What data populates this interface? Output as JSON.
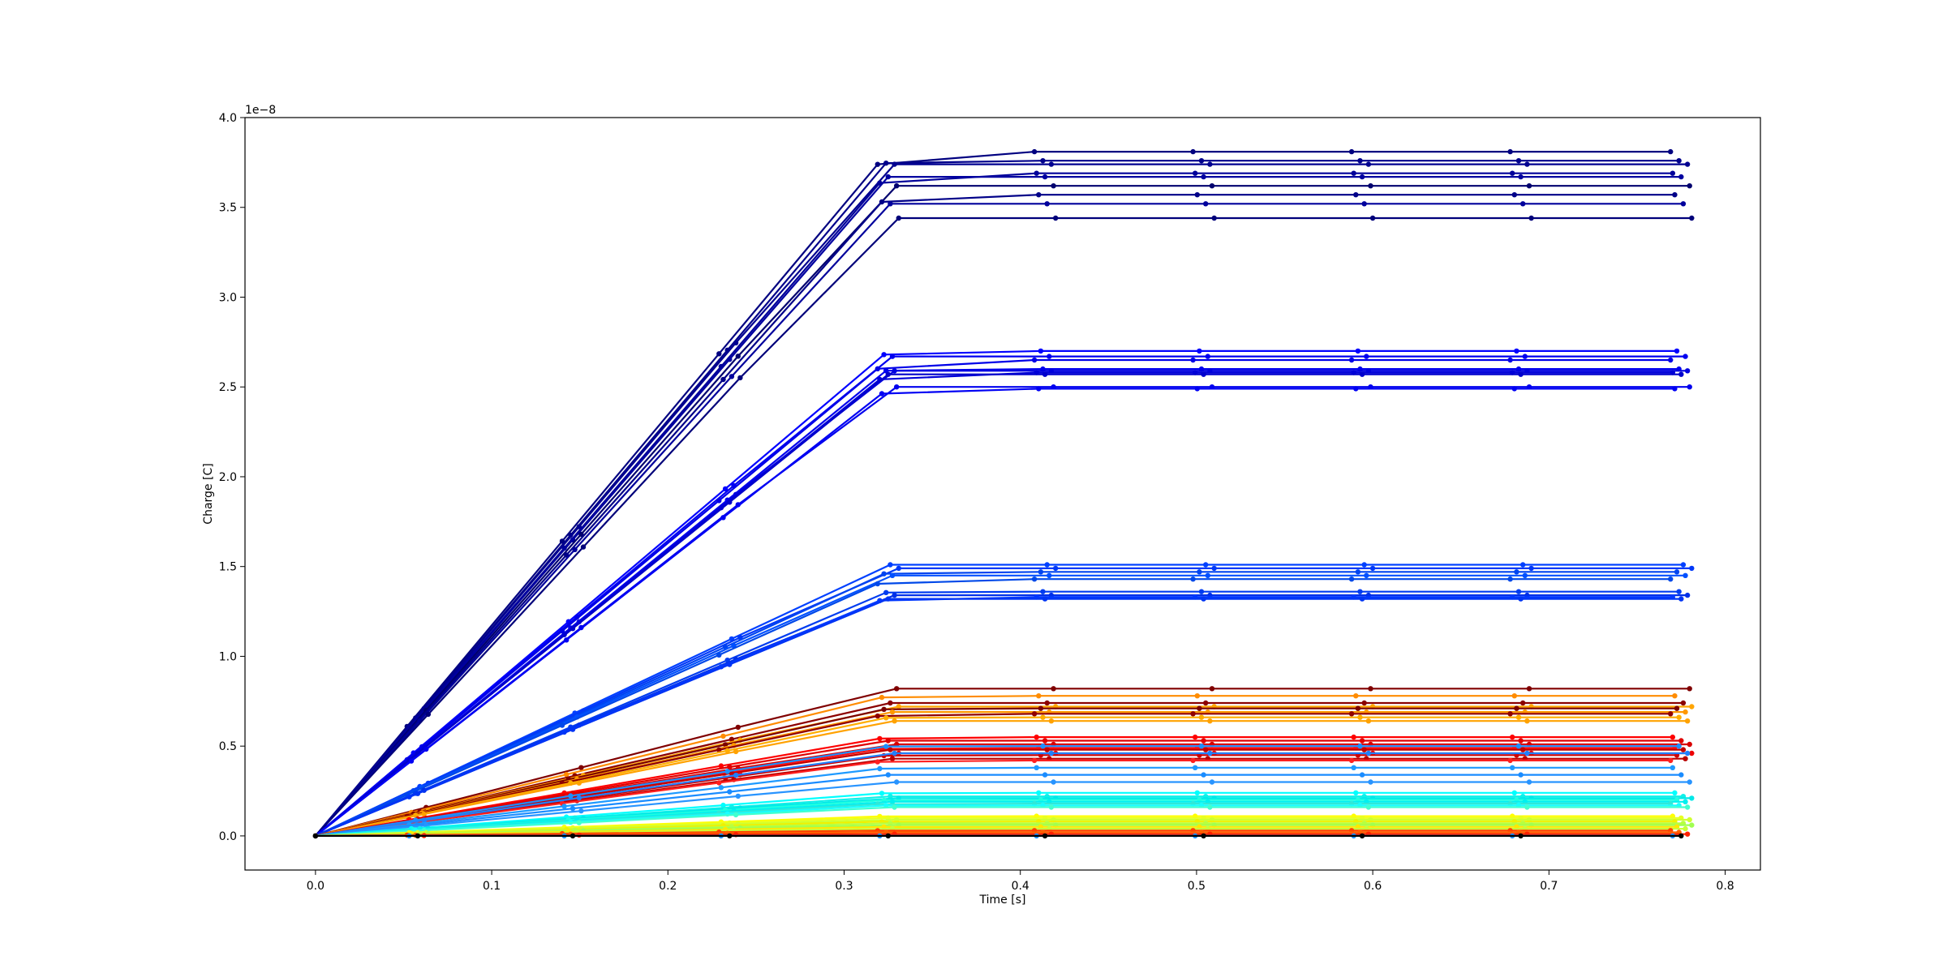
{
  "chart_data": {
    "type": "line",
    "title": "",
    "xlabel": "Time [s]",
    "ylabel": "Charge [C]",
    "y_offset_text": "1e−8",
    "xlim": [
      -0.04,
      0.82
    ],
    "ylim": [
      -0.19,
      4.0
    ],
    "xticks": [
      "0.0",
      "0.1",
      "0.2",
      "0.3",
      "0.4",
      "0.5",
      "0.6",
      "0.7",
      "0.8"
    ],
    "yticks": [
      "0.0",
      "0.5",
      "1.0",
      "1.5",
      "2.0",
      "2.5",
      "3.0",
      "3.5",
      "4.0"
    ],
    "grid": false,
    "legend": "none",
    "x_sample_times": [
      0.0,
      0.058,
      0.146,
      0.235,
      0.325,
      0.414,
      0.504,
      0.594,
      0.684,
      0.775
    ],
    "plateau_values": [
      3.81,
      3.76,
      3.74,
      3.69,
      3.67,
      3.62,
      3.57,
      3.52,
      3.44,
      2.7,
      2.67,
      2.65,
      2.6,
      2.59,
      2.58,
      2.57,
      2.5,
      2.49,
      1.51,
      1.49,
      1.47,
      1.45,
      1.43,
      1.36,
      1.34,
      1.33,
      1.32,
      0.82,
      0.78,
      0.74,
      0.72,
      0.71,
      0.69,
      0.68,
      0.66,
      0.64,
      0.55,
      0.53,
      0.51,
      0.49,
      0.48,
      0.46,
      0.45,
      0.43,
      0.42,
      0.5,
      0.46,
      0.38,
      0.34,
      0.3,
      0.24,
      0.22,
      0.21,
      0.2,
      0.19,
      0.18,
      0.17,
      0.16,
      0.11,
      0.1,
      0.09,
      0.08,
      0.07,
      0.06,
      0.05,
      0.04,
      0.03,
      0.02,
      0.01,
      0.0,
      0.0
    ],
    "series_colors": [
      "#000080",
      "#00008b",
      "#000090",
      "#00009a",
      "#0000a0",
      "#00006e",
      "#000088",
      "#00009c",
      "#00007a",
      "#0000ff",
      "#0000f0",
      "#0000e8",
      "#0000ee",
      "#0000e0",
      "#0000d8",
      "#0000cc",
      "#0000ee",
      "#0000f4",
      "#0040ff",
      "#0038f8",
      "#0044f0",
      "#0050ff",
      "#0048e8",
      "#003cf0",
      "#0030e8",
      "#0038ff",
      "#0034f4",
      "#800000",
      "#ff8c00",
      "#8b0000",
      "#ffa500",
      "#7a0000",
      "#ff9800",
      "#900000",
      "#ffae00",
      "#ffa200",
      "#ff0000",
      "#e00000",
      "#d80000",
      "#ff1010",
      "#c00000",
      "#ee0000",
      "#d00000",
      "#b80000",
      "#ff2020",
      "#1e90ff",
      "#2080ff",
      "#1e9aff",
      "#1a8cff",
      "#2894ff",
      "#00ffff",
      "#10f0e8",
      "#00e8e8",
      "#20ffe0",
      "#00f0f0",
      "#30e8d8",
      "#18ffff",
      "#40ffd0",
      "#ffff00",
      "#e8ff20",
      "#d0ff30",
      "#f0f000",
      "#b8ff40",
      "#a0ff50",
      "#ffe800",
      "#c8ff38",
      "#ff4000",
      "#ff6000",
      "#ff2000",
      "#1e90ff",
      "#000000"
    ]
  }
}
